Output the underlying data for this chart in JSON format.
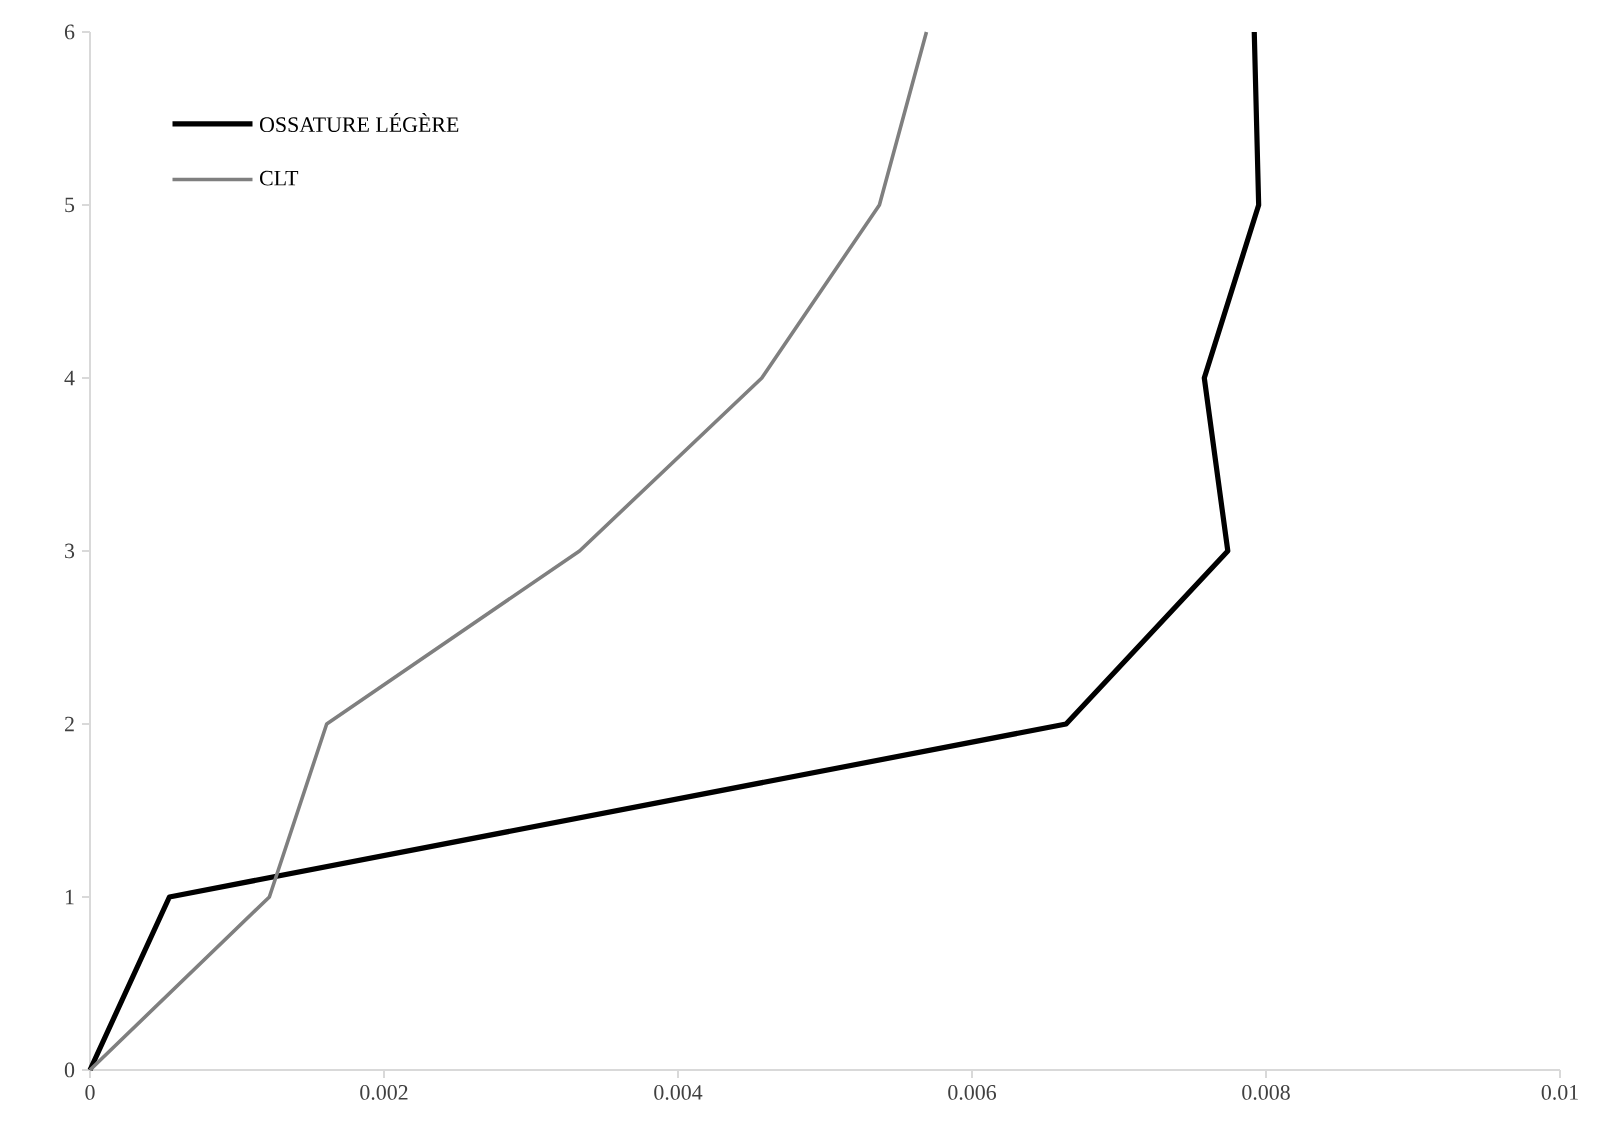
{
  "chart_data": {
    "type": "line",
    "series": [
      {
        "name": "OSSATURE LÉGÈRE",
        "color": "#000000",
        "x": [
          0,
          0.00054,
          0.00664,
          0.00774,
          0.00758,
          0.00795,
          0.00792
        ],
        "values": [
          0,
          1,
          2,
          3,
          4,
          5,
          6
        ]
      },
      {
        "name": "CLT",
        "color": "#7f7f7f",
        "x": [
          0,
          0.00122,
          0.00161,
          0.00333,
          0.00457,
          0.00537,
          0.00569
        ],
        "values": [
          0,
          1,
          2,
          3,
          4,
          5,
          6
        ]
      }
    ],
    "xlim": [
      0,
      0.01
    ],
    "ylim": [
      0,
      6
    ],
    "xticks": [
      0,
      0.002,
      0.004,
      0.006,
      0.008,
      0.01
    ],
    "yticks": [
      0,
      1,
      2,
      3,
      4,
      5,
      6
    ],
    "legend": "top left",
    "marker": "none",
    "line_style": "solid",
    "grid": false
  }
}
